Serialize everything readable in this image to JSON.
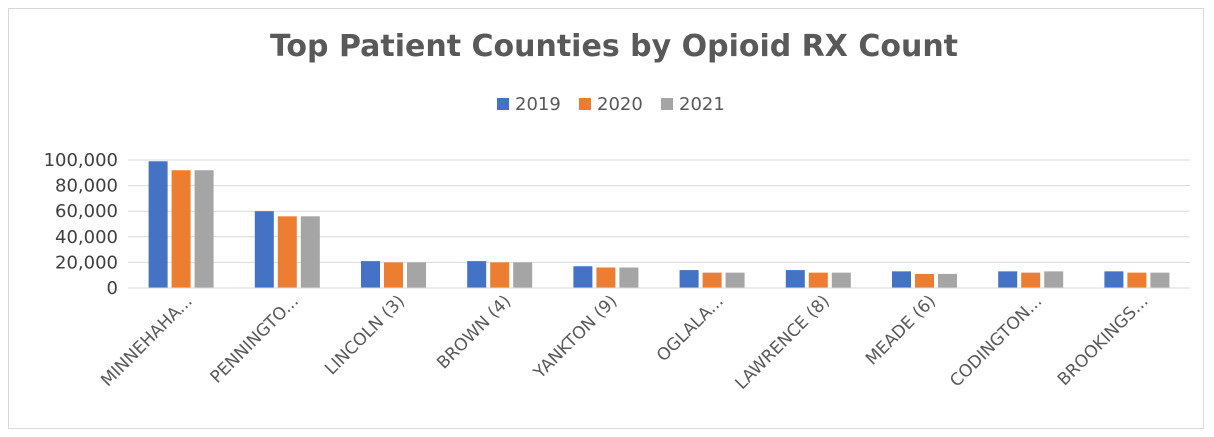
{
  "chart_data": {
    "type": "bar",
    "title": "Top Patient Counties by Opioid RX Count",
    "xlabel": "",
    "ylabel": "",
    "categories": [
      "MINNEHAHA...",
      "PENNINGTO...",
      "LINCOLN (3)",
      "BROWN (4)",
      "YANKTON (9)",
      "OGLALA...",
      "LAWRENCE (8)",
      "MEADE (6)",
      "CODINGTON...",
      "BROOKINGS..."
    ],
    "series": [
      {
        "name": "2019",
        "color": "#4472C4",
        "values": [
          99000,
          60000,
          21000,
          21000,
          17000,
          14000,
          14000,
          13000,
          13000,
          13000
        ]
      },
      {
        "name": "2020",
        "color": "#ED7D31",
        "values": [
          92000,
          56000,
          20000,
          20000,
          16000,
          12000,
          12000,
          11000,
          12000,
          12000
        ]
      },
      {
        "name": "2021",
        "color": "#A5A5A5",
        "values": [
          92000,
          56000,
          20000,
          20000,
          16000,
          12000,
          12000,
          11000,
          13000,
          12000
        ]
      }
    ],
    "ylim": [
      0,
      100000
    ],
    "yticks": [
      "0",
      "20,000",
      "40,000",
      "60,000",
      "80,000",
      "100,000"
    ],
    "grid": true,
    "legend_position": "top-center"
  }
}
